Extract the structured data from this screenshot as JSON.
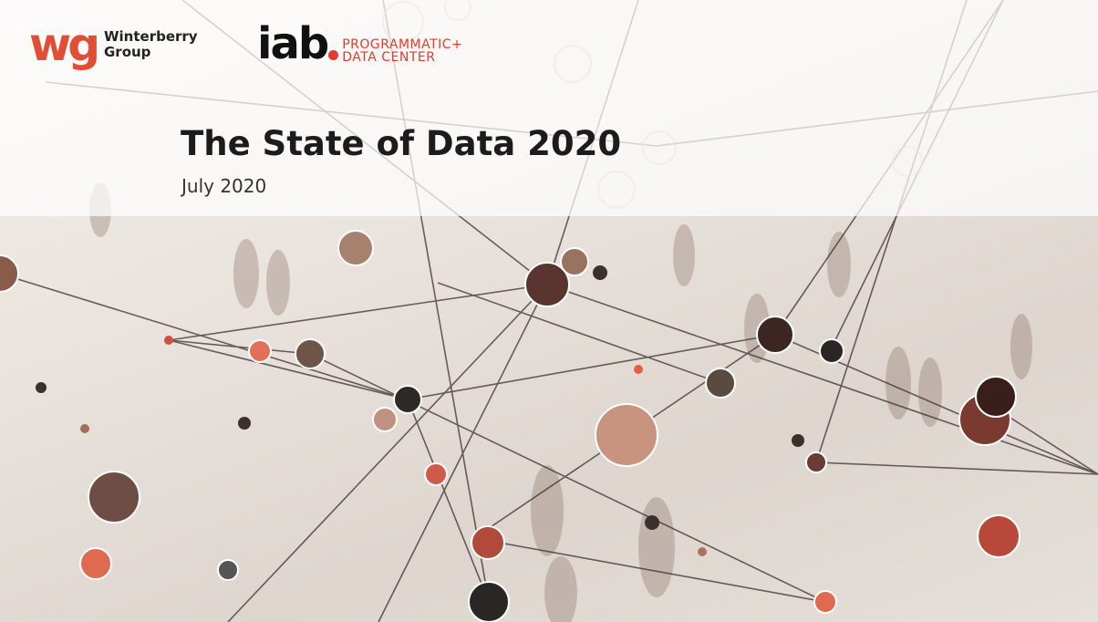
{
  "logos": {
    "winterberry": {
      "mark": "wg",
      "line1": "Winterberry",
      "line2": "Group"
    },
    "iab": {
      "mark": "iab",
      "line1": "PROGRAMMATIC+",
      "line2": "DATA CENTER"
    }
  },
  "title": "The State of Data 2020",
  "subtitle": "July 2020",
  "colors": {
    "brand_red": "#e04e35",
    "iab_red": "#e6392b",
    "title": "#1c1c1c"
  }
}
